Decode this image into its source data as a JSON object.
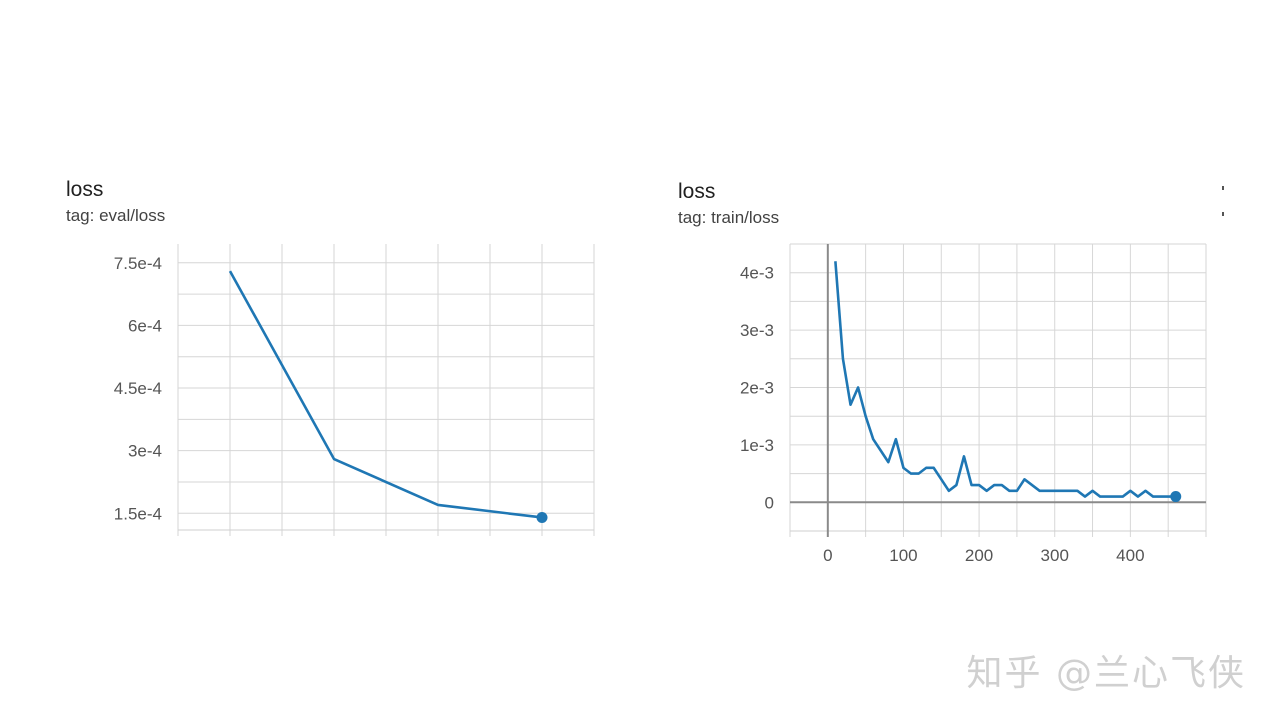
{
  "chart_data": [
    {
      "type": "line",
      "title": "loss",
      "subtitle": "tag: eval/loss",
      "xlabel": "",
      "ylabel": "",
      "grid": true,
      "color": "#1f77b4",
      "y_ticks": [
        {
          "value": 0.00075,
          "label": "7.5e-4"
        },
        {
          "value": 0.0006,
          "label": "6e-4"
        },
        {
          "value": 0.00045,
          "label": "4.5e-4"
        },
        {
          "value": 0.0003,
          "label": "3e-4"
        },
        {
          "value": 0.00015,
          "label": "1.5e-4"
        }
      ],
      "ylim": [
        0.00011,
        0.000795
      ],
      "xlim": [
        -1,
        7
      ],
      "x_ticks": [],
      "x": [
        0,
        2,
        4,
        6
      ],
      "values": [
        0.00073,
        0.00028,
        0.00017,
        0.00014
      ],
      "last_point_marker": true
    },
    {
      "type": "line",
      "title": "loss",
      "subtitle": "tag: train/loss",
      "xlabel": "",
      "ylabel": "",
      "grid": true,
      "color": "#1f77b4",
      "y_ticks": [
        {
          "value": 0.004,
          "label": "4e-3"
        },
        {
          "value": 0.003,
          "label": "3e-3"
        },
        {
          "value": 0.002,
          "label": "2e-3"
        },
        {
          "value": 0.001,
          "label": "1e-3"
        },
        {
          "value": 0,
          "label": "0"
        }
      ],
      "ylim": [
        -0.0005,
        0.0045
      ],
      "xlim": [
        -50,
        500
      ],
      "x_ticks": [
        {
          "value": 0,
          "label": "0"
        },
        {
          "value": 100,
          "label": "100"
        },
        {
          "value": 200,
          "label": "200"
        },
        {
          "value": 300,
          "label": "300"
        },
        {
          "value": 400,
          "label": "400"
        }
      ],
      "x": [
        10,
        20,
        30,
        40,
        50,
        60,
        70,
        80,
        90,
        100,
        110,
        120,
        130,
        140,
        150,
        160,
        170,
        180,
        190,
        200,
        210,
        220,
        230,
        240,
        250,
        260,
        270,
        280,
        290,
        300,
        310,
        320,
        330,
        340,
        350,
        360,
        370,
        380,
        390,
        400,
        410,
        420,
        430,
        440,
        450,
        460
      ],
      "values": [
        0.0042,
        0.0025,
        0.0017,
        0.002,
        0.0015,
        0.0011,
        0.0009,
        0.0007,
        0.0011,
        0.0006,
        0.0005,
        0.0005,
        0.0006,
        0.0006,
        0.0004,
        0.0002,
        0.0003,
        0.0008,
        0.0003,
        0.0003,
        0.0002,
        0.0003,
        0.0003,
        0.0002,
        0.0002,
        0.0004,
        0.0003,
        0.0002,
        0.0002,
        0.0002,
        0.0002,
        0.0002,
        0.0002,
        0.0001,
        0.0002,
        0.0001,
        0.0001,
        0.0001,
        0.0001,
        0.0002,
        0.0001,
        0.0002,
        0.0001,
        0.0001,
        0.0001,
        0.0001
      ],
      "last_point_marker": true
    }
  ],
  "watermark": "知乎 @兰心飞侠"
}
